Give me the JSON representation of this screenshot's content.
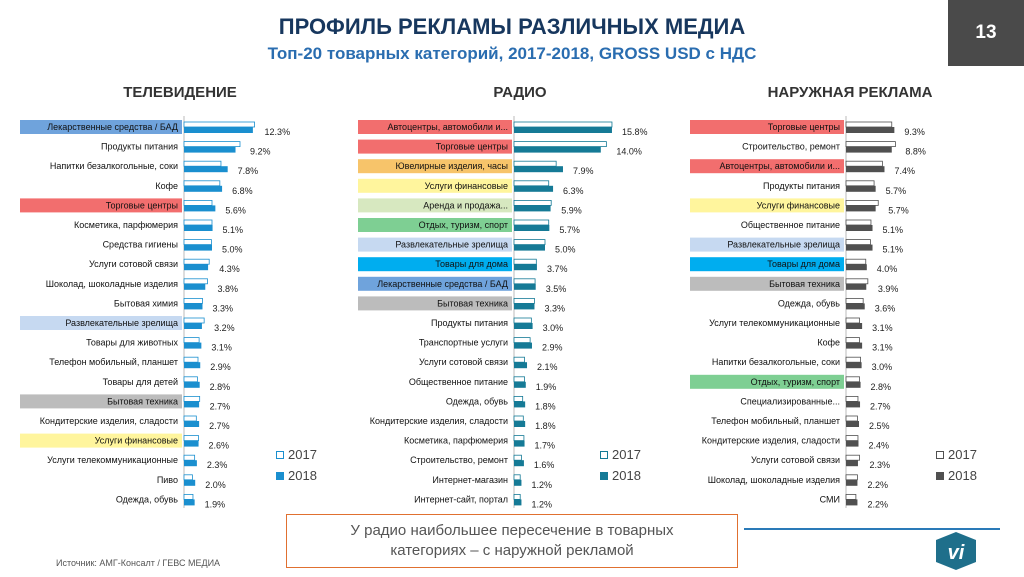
{
  "header": {
    "title": "ПРОФИЛЬ РЕКЛАМЫ РАЗЛИЧНЫХ МЕДИА",
    "subtitle": "Топ-20 товарных категорий, 2017-2018, GROSS USD с НДС",
    "page_number": "13"
  },
  "colors": {
    "bar_2018_tv": "#1a8fcf",
    "bar_2018_radio": "#157a96",
    "bar_2018_outdoor": "#505050",
    "bar_2017": "#ffffff",
    "hl_blue": "#6fa3dc",
    "hl_red": "#f26e6e",
    "hl_orange": "#f7c46a",
    "hl_yellow": "#fff59d",
    "hl_lightgreen": "#d7e8c0",
    "hl_green": "#7ecf93",
    "hl_lightblue": "#c6d9f1",
    "hl_cyan": "#00adef",
    "hl_gray": "#bcbcbc"
  },
  "legend": {
    "label_2017": "2017",
    "label_2018": "2018"
  },
  "chart_data": [
    {
      "type": "bar",
      "title": "ТЕЛЕВИДЕНИЕ",
      "unit": "%",
      "categories": [
        "Лекарственные средства / БАД",
        "Продукты питания",
        "Напитки безалкогольные, соки",
        "Кофе",
        "Торговые центры",
        "Косметика, парфюмерия",
        "Средства гигиены",
        "Услуги сотовой связи",
        "Шоколад, шоколадные изделия",
        "Бытовая химия",
        "Развлекательные зрелища",
        "Товары для животных",
        "Телефон мобильный, планшет",
        "Товары для детей",
        "Бытовая техника",
        "Кондитерские изделия, сладости",
        "Услуги финансовые",
        "Услуги телекоммуникационные",
        "Пиво",
        "Одежда, обувь"
      ],
      "labels": [
        "12.3%",
        "9.2%",
        "7.8%",
        "6.8%",
        "5.6%",
        "5.1%",
        "5.0%",
        "4.3%",
        "3.8%",
        "3.3%",
        "3.2%",
        "3.1%",
        "2.9%",
        "2.8%",
        "2.7%",
        "2.7%",
        "2.6%",
        "2.3%",
        "2.0%",
        "1.9%"
      ],
      "series": [
        {
          "name": "2017",
          "values": [
            12.6,
            10.0,
            6.6,
            6.4,
            5.0,
            5.0,
            4.9,
            4.5,
            4.2,
            3.3,
            3.6,
            2.7,
            2.5,
            2.4,
            2.8,
            2.2,
            2.6,
            1.9,
            1.5,
            1.6
          ]
        },
        {
          "name": "2018",
          "values": [
            12.3,
            9.2,
            7.8,
            6.8,
            5.6,
            5.1,
            5.0,
            4.3,
            3.8,
            3.3,
            3.2,
            3.1,
            2.9,
            2.8,
            2.7,
            2.7,
            2.6,
            2.3,
            2.0,
            1.9
          ]
        }
      ],
      "highlights": [
        "hl_blue",
        "",
        "",
        "",
        "hl_red",
        "",
        "",
        "",
        "",
        "",
        "hl_lightblue",
        "",
        "",
        "",
        "hl_gray",
        "",
        "hl_yellow",
        "",
        "",
        ""
      ]
    },
    {
      "type": "bar",
      "title": "РАДИО",
      "unit": "%",
      "categories": [
        "Автоцентры, автомобили и...",
        "Торговые центры",
        "Ювелирные изделия, часы",
        "Услуги финансовые",
        "Аренда и продажа...",
        "Отдых, туризм, спорт",
        "Развлекательные зрелища",
        "Товары для дома",
        "Лекарственные средства / БАД",
        "Бытовая техника",
        "Продукты питания",
        "Транспортные услуги",
        "Услуги сотовой связи",
        "Общественное питание",
        "Одежда, обувь",
        "Кондитерские изделия, сладости",
        "Косметика, парфюмерия",
        "Строительство, ремонт",
        "Интернет-магазин",
        "Интернет-сайт, портал"
      ],
      "labels": [
        "15.8%",
        "14.0%",
        "7.9%",
        "6.3%",
        "5.9%",
        "5.7%",
        "5.0%",
        "3.7%",
        "3.5%",
        "3.3%",
        "3.0%",
        "2.9%",
        "2.1%",
        "1.9%",
        "1.8%",
        "1.8%",
        "1.7%",
        "1.6%",
        "1.2%",
        "1.2%"
      ],
      "series": [
        {
          "name": "2017",
          "values": [
            15.8,
            14.9,
            6.8,
            5.6,
            6.0,
            5.6,
            5.0,
            3.6,
            3.4,
            3.3,
            2.8,
            2.6,
            1.7,
            1.7,
            1.4,
            1.5,
            1.6,
            1.2,
            1.0,
            1.0
          ]
        },
        {
          "name": "2018",
          "values": [
            15.8,
            14.0,
            7.9,
            6.3,
            5.9,
            5.7,
            5.0,
            3.7,
            3.5,
            3.3,
            3.0,
            2.9,
            2.1,
            1.9,
            1.8,
            1.8,
            1.7,
            1.6,
            1.2,
            1.2
          ]
        }
      ],
      "highlights": [
        "hl_red",
        "hl_red",
        "hl_orange",
        "hl_yellow",
        "hl_lightgreen",
        "hl_green",
        "hl_lightblue",
        "hl_cyan",
        "hl_blue",
        "hl_gray",
        "",
        "",
        "",
        "",
        "",
        "",
        "",
        "",
        "",
        ""
      ]
    },
    {
      "type": "bar",
      "title": "НАРУЖНАЯ РЕКЛАМА",
      "unit": "%",
      "categories": [
        "Торговые центры",
        "Строительство, ремонт",
        "Автоцентры, автомобили и...",
        "Продукты питания",
        "Услуги финансовые",
        "Общественное питание",
        "Развлекательные зрелища",
        "Товары для дома",
        "Бытовая техника",
        "Одежда, обувь",
        "Услуги телекоммуникационные",
        "Кофе",
        "Напитки безалкогольные, соки",
        "Отдых, туризм, спорт",
        "Специализированные...",
        "Телефон мобильный, планшет",
        "Кондитерские изделия, сладости",
        "Услуги сотовой связи",
        "Шоколад, шоколадные изделия",
        "СМИ"
      ],
      "labels": [
        "9.3%",
        "8.8%",
        "7.4%",
        "5.7%",
        "5.7%",
        "5.1%",
        "5.1%",
        "4.0%",
        "3.9%",
        "3.6%",
        "3.1%",
        "3.1%",
        "3.0%",
        "2.8%",
        "2.7%",
        "2.5%",
        "2.4%",
        "2.3%",
        "2.2%",
        "2.2%"
      ],
      "series": [
        {
          "name": "2017",
          "values": [
            8.8,
            9.5,
            7.0,
            5.4,
            6.2,
            4.8,
            4.7,
            3.8,
            4.2,
            3.3,
            2.6,
            2.6,
            2.8,
            2.6,
            2.3,
            2.2,
            2.3,
            2.6,
            2.2,
            1.9
          ]
        },
        {
          "name": "2018",
          "values": [
            9.3,
            8.8,
            7.4,
            5.7,
            5.7,
            5.1,
            5.1,
            4.0,
            3.9,
            3.6,
            3.1,
            3.1,
            3.0,
            2.8,
            2.7,
            2.5,
            2.4,
            2.3,
            2.2,
            2.2
          ]
        }
      ],
      "highlights": [
        "hl_red",
        "",
        "hl_red",
        "",
        "hl_yellow",
        "",
        "hl_lightblue",
        "hl_cyan",
        "hl_gray",
        "",
        "",
        "",
        "",
        "hl_green",
        "",
        "",
        "",
        "",
        "",
        ""
      ]
    }
  ],
  "callout": {
    "line1": "У радио наибольшее пересечение в товарных",
    "line2": "категориях – с наружной рекламой"
  },
  "source": "Источник: АМГ-Консалт / ГЕВС МЕДИА",
  "logo": {
    "text": "vi"
  }
}
